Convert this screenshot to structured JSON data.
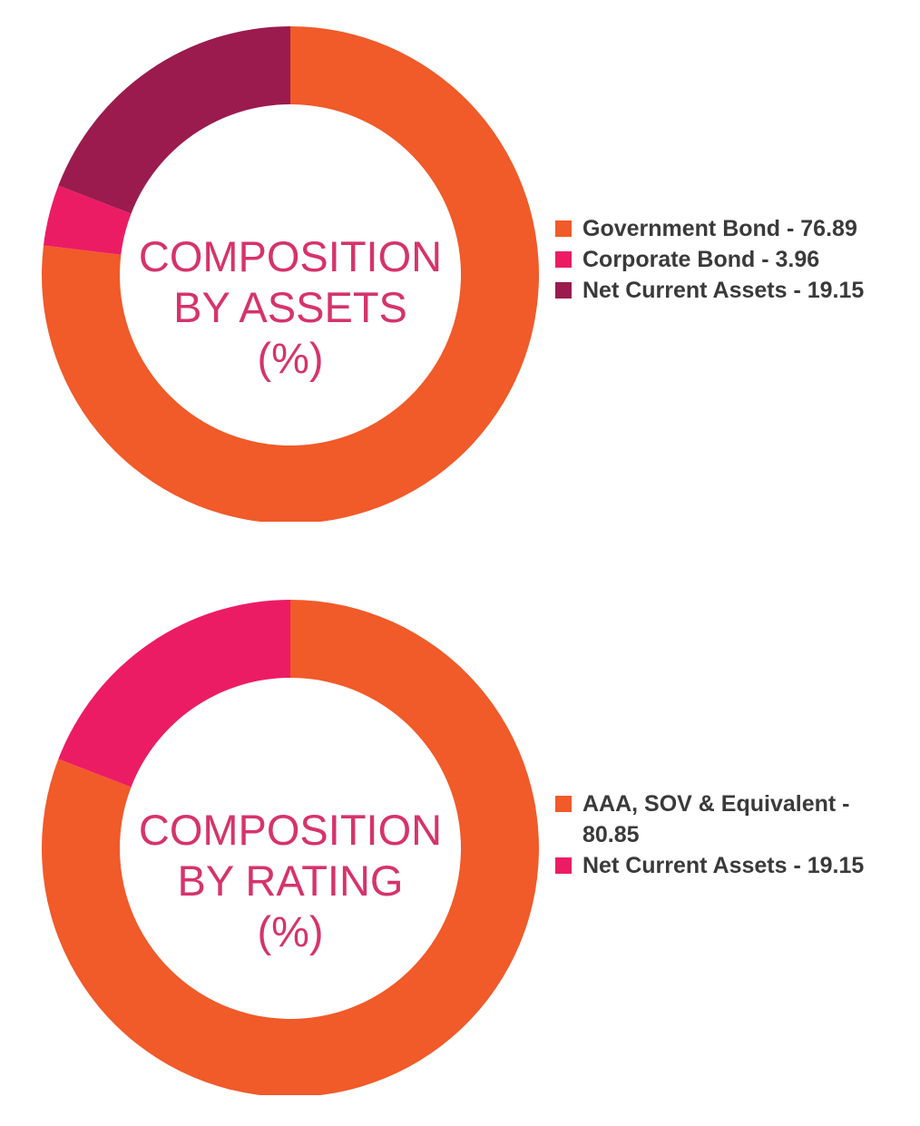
{
  "charts": {
    "assets": {
      "center_title": [
        "COMPOSITION",
        "BY ASSETS",
        "(%)"
      ],
      "legend": [
        "Government Bond - 76.89",
        "Corporate Bond - 3.96",
        "Net Current Assets - 19.15"
      ]
    },
    "rating": {
      "center_title": [
        "COMPOSITION",
        "BY RATING",
        "(%)"
      ],
      "legend": [
        "AAA, SOV & Equivalent - 80.85",
        "Net Current Assets - 19.15"
      ]
    }
  },
  "chart_data": [
    {
      "type": "pie",
      "title": "COMPOSITION BY ASSETS (%)",
      "categories": [
        "Government Bond",
        "Corporate Bond",
        "Net Current Assets"
      ],
      "values": [
        76.89,
        3.96,
        19.15
      ],
      "colors": [
        "#f15a29",
        "#ec1c64",
        "#9b1b4f"
      ],
      "legend_position": "right"
    },
    {
      "type": "pie",
      "title": "COMPOSITION BY RATING (%)",
      "categories": [
        "AAA, SOV & Equivalent",
        "Net Current Assets"
      ],
      "values": [
        80.85,
        19.15
      ],
      "colors": [
        "#f15a29",
        "#ec1c64"
      ],
      "legend_position": "right"
    }
  ]
}
